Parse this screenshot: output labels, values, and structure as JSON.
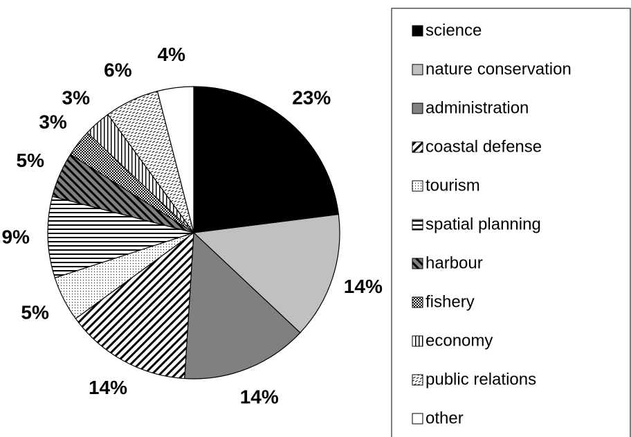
{
  "chart_data": {
    "type": "pie",
    "categories": [
      "science",
      "nature conservation",
      "administration",
      "coastal defense",
      "tourism",
      "spatial planning",
      "harbour",
      "fishery",
      "economy",
      "public relations",
      "other"
    ],
    "values": [
      23,
      14,
      14,
      14,
      5,
      9,
      5,
      3,
      3,
      6,
      4
    ],
    "value_labels": [
      "23%",
      "14%",
      "14%",
      "14%",
      "5%",
      "9%",
      "5%",
      "3%",
      "3%",
      "6%",
      "4%"
    ],
    "colors": [
      "#000000",
      "#c0c0c0",
      "#808080",
      "#000000",
      "#000000",
      "#000000",
      "#000000",
      "#000000",
      "#000000",
      "#000000",
      "#ffffff"
    ],
    "patterns": [
      "solid",
      "solid",
      "solid",
      "diagonal-down",
      "dots",
      "horizontal",
      "diagonal-up",
      "checker",
      "vertical",
      "dashes",
      "solid"
    ],
    "legend": "right"
  }
}
